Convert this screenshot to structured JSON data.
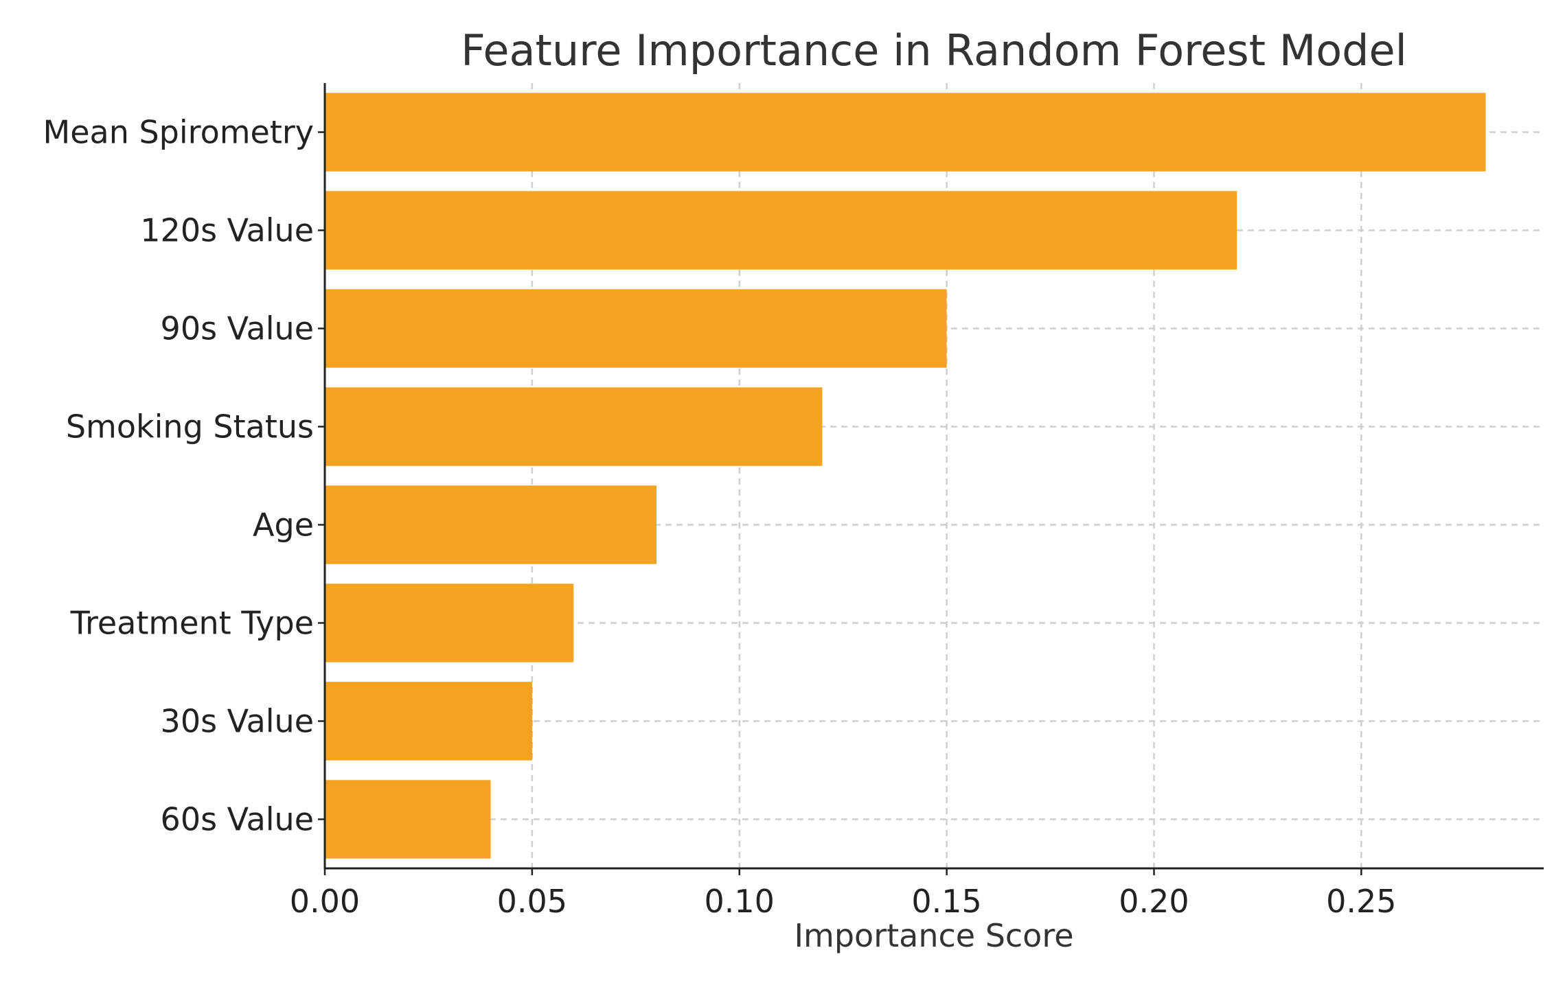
{
  "chart_data": {
    "type": "bar",
    "orientation": "horizontal",
    "title": "Feature Importance in Random Forest Model",
    "xlabel": "Importance Score",
    "ylabel": "",
    "categories": [
      "Mean Spirometry",
      "120s Value",
      "90s Value",
      "Smoking Status",
      "Age",
      "Treatment Type",
      "30s Value",
      "60s Value"
    ],
    "values": [
      0.28,
      0.22,
      0.15,
      0.12,
      0.08,
      0.06,
      0.05,
      0.04
    ],
    "xlim": [
      0,
      0.294
    ],
    "xticks": [
      0.0,
      0.05,
      0.1,
      0.15,
      0.2,
      0.25
    ],
    "xtick_labels": [
      "0.00",
      "0.05",
      "0.10",
      "0.15",
      "0.20",
      "0.25"
    ],
    "grid": true,
    "bar_color": "#f4a321"
  }
}
